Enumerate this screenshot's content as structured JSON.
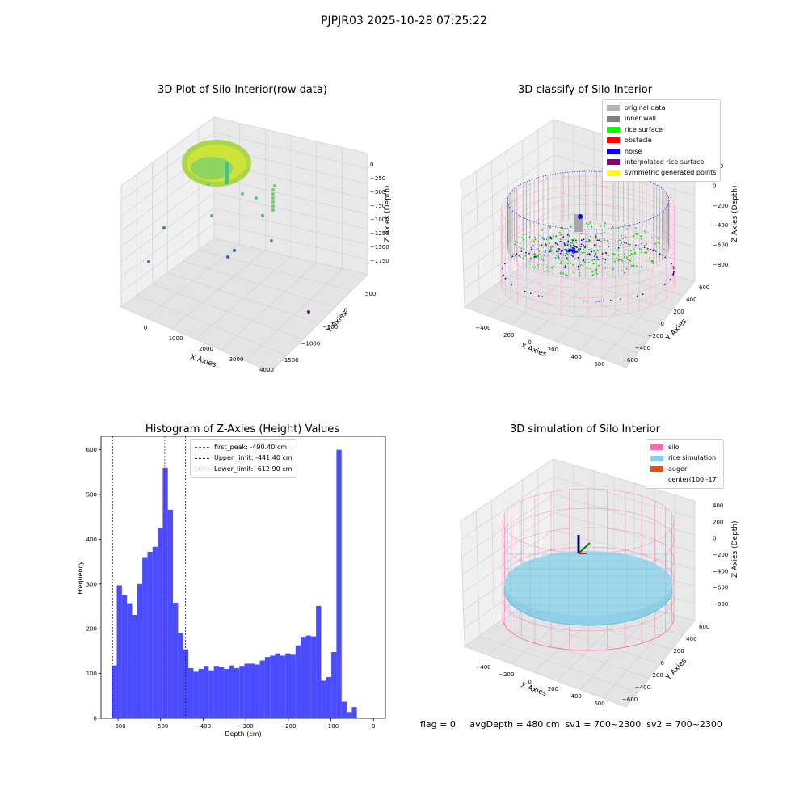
{
  "suptitle": "PJPJR03 2025-10-28 07:25:22",
  "panels": {
    "raw": {
      "title": "3D Plot of Silo Interior(row data)",
      "xlabel": "X Axies",
      "ylabel": "Y Axies",
      "zlabel": "Z Axies (Depth)",
      "xticks": [
        "0",
        "1000",
        "2000",
        "3000",
        "4000"
      ],
      "yticks": [
        "500",
        "0",
        "−500",
        "−1000",
        "−1500"
      ],
      "zticks": [
        "0",
        "−250",
        "−500",
        "−750",
        "−1000",
        "−1250",
        "−1500",
        "−1750"
      ]
    },
    "classify": {
      "title": "3D classify of Silo Interior",
      "xlabel": "X Axies",
      "ylabel": "Y Axies",
      "zlabel": "Z Axies (Depth)",
      "xticks": [
        "−400",
        "−200",
        "0",
        "200",
        "400",
        "600"
      ],
      "yticks": [
        "600",
        "400",
        "200",
        "0",
        "−200",
        "−400",
        "−600"
      ],
      "zticks": [
        "200",
        "0",
        "−200",
        "−400",
        "−600",
        "−800"
      ],
      "legend": [
        {
          "label": "original data",
          "color": "#b3b3b3"
        },
        {
          "label": "inner wall",
          "color": "#808080"
        },
        {
          "label": "rice surface",
          "color": "#00ff00"
        },
        {
          "label": "obstacle",
          "color": "#ff0000"
        },
        {
          "label": "noise",
          "color": "#0000ff"
        },
        {
          "label": "interpolated rice surface",
          "color": "#800080"
        },
        {
          "label": "symmetric generated points",
          "color": "#ffff00"
        }
      ]
    },
    "simulation": {
      "title": "3D simulation of Silo Interior",
      "xlabel": "X Axies",
      "ylabel": "Y Axies",
      "zlabel": "Z Axies (Depth)",
      "xticks": [
        "−400",
        "−200",
        "0",
        "200",
        "400",
        "600"
      ],
      "yticks": [
        "600",
        "400",
        "200",
        "0",
        "−200",
        "−400",
        "−600"
      ],
      "zticks": [
        "400",
        "200",
        "0",
        "−200",
        "−400",
        "−600",
        "−800"
      ],
      "legend": [
        {
          "label": "silo",
          "color": "#ff69b4"
        },
        {
          "label": "rice simulation",
          "color": "#87ceeb"
        },
        {
          "label": "auger",
          "color": "#ff4500"
        },
        {
          "label": "center(100,-17)",
          "color": ""
        }
      ]
    }
  },
  "chart_data": {
    "type": "bar",
    "title": "Histogram of Z-Axies (Height) Values",
    "xlabel": "Depth (cm)",
    "ylabel": "Frequency",
    "xlim": [
      -640,
      28
    ],
    "ylim": [
      0,
      630
    ],
    "xticks": [
      -600,
      -500,
      -400,
      -300,
      -200,
      -100,
      0
    ],
    "yticks": [
      0,
      100,
      200,
      300,
      400,
      500,
      600
    ],
    "bar_color": "#0000ff",
    "bin_start": -615,
    "bin_width": 12,
    "values": [
      118,
      297,
      276,
      257,
      231,
      300,
      360,
      372,
      383,
      426,
      560,
      466,
      258,
      190,
      154,
      112,
      104,
      110,
      117,
      107,
      117,
      114,
      110,
      118,
      112,
      117,
      122,
      122,
      120,
      129,
      137,
      140,
      145,
      140,
      145,
      142,
      163,
      182,
      185,
      183,
      251,
      84,
      92,
      148,
      600,
      37,
      14,
      25
    ],
    "vlines": [
      {
        "label": "first_peak: -490.40 cm",
        "x": -490.4,
        "color": "#ff0000"
      },
      {
        "label": "Upper_limit: -441.40 cm",
        "x": -441.4,
        "color": "#0000ff"
      },
      {
        "label": "Lower_limit: -612.90 cm",
        "x": -612.9,
        "color": "#0000ff"
      }
    ]
  },
  "status": {
    "flag": "flag = 0",
    "avg": "avgDepth = 480 cm",
    "sv1": "sv1 = 700~2300",
    "sv2": "sv2 = 700~2300"
  }
}
